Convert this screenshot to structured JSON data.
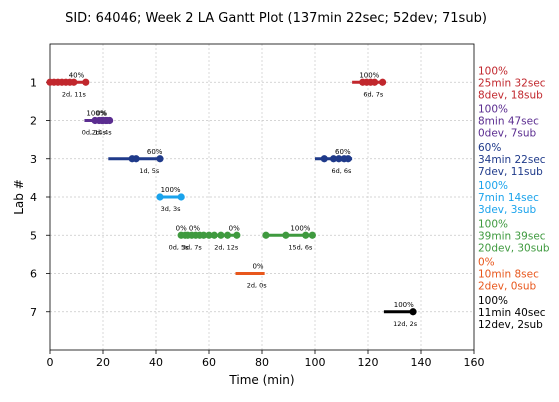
{
  "chart_data": {
    "type": "gantt",
    "title": "SID: 64046; Week 2 LA Gantt Plot (137min 22sec; 52dev; 71sub)",
    "xlabel": "Time (min)",
    "ylabel": "Lab #",
    "xlim": [
      0,
      160
    ],
    "ylim": [
      8,
      0
    ],
    "xticks": [
      0,
      20,
      40,
      60,
      80,
      100,
      120,
      140,
      160
    ],
    "xtick_labels": [
      "0",
      "20",
      "40",
      "60",
      "80",
      "100",
      "120",
      "140",
      "160"
    ],
    "yticks": [
      1,
      2,
      3,
      4,
      5,
      6,
      7
    ],
    "ytick_labels": [
      "1",
      "2",
      "3",
      "4",
      "5",
      "6",
      "7"
    ],
    "grid": "dashed",
    "segments": [
      {
        "lab": 1,
        "start": 0,
        "end": 13.5,
        "color": "#c1272d",
        "points": [
          0,
          1.5,
          3,
          4.5,
          6,
          7.5,
          9,
          13.5
        ],
        "pct_label": "40%",
        "dur_label": "2d, 11s"
      },
      {
        "lab": 1,
        "start": 114,
        "end": 126,
        "color": "#c1272d",
        "points": [
          118,
          119.5,
          121,
          122.5,
          125.5
        ],
        "pct_label": "100%",
        "dur_label": "6d, 7s"
      },
      {
        "lab": 2,
        "start": 13,
        "end": 23,
        "color": "#5b2d90",
        "points": [
          17,
          18.5,
          20,
          21.5,
          22.5
        ],
        "pct_label": "100%",
        "dur_label": "0d, 14s"
      },
      {
        "lab": 2,
        "start": 18,
        "end": 22,
        "color": "#5b2d90",
        "points": [
          19.5,
          21
        ],
        "pct_label": "0%",
        "dur_label": "2d, 4s"
      },
      {
        "lab": 3,
        "start": 22,
        "end": 41.5,
        "color": "#1f3a8a",
        "points": [
          31,
          32.5,
          41.5
        ],
        "pct_label": "60%",
        "dur_label": "1d, 5s"
      },
      {
        "lab": 3,
        "start": 100,
        "end": 114,
        "color": "#1f3a8a",
        "points": [
          103.5,
          107,
          109,
          111,
          112.5
        ],
        "pct_label": "60%",
        "dur_label": "6d, 6s"
      },
      {
        "lab": 4,
        "start": 41,
        "end": 49.5,
        "color": "#1aa3ec",
        "points": [
          41.5,
          49.5
        ],
        "pct_label": "100%",
        "dur_label": "3d, 3s"
      },
      {
        "lab": 5,
        "start": 49,
        "end": 52,
        "color": "#3f9a3f",
        "points": [
          49.5,
          51
        ],
        "pct_label": "0%",
        "dur_label": "0d, 5s"
      },
      {
        "lab": 5,
        "start": 51,
        "end": 58,
        "color": "#3f9a3f",
        "points": [
          52,
          53.5,
          55,
          56.5,
          58
        ],
        "pct_label": "0%",
        "dur_label": "3d, 7s"
      },
      {
        "lab": 5,
        "start": 58,
        "end": 71,
        "color": "#3f9a3f",
        "points": [
          60,
          62,
          64.5,
          67,
          70.5
        ],
        "pct_label": "0%",
        "dur_label": "2d, 12s"
      },
      {
        "lab": 5,
        "start": 81,
        "end": 99.5,
        "color": "#3f9a3f",
        "points": [
          81.5,
          89,
          96.5,
          99
        ],
        "pct_label": "100%",
        "dur_label": "15d, 6s"
      },
      {
        "lab": 6,
        "start": 70,
        "end": 81,
        "color": "#e8571c",
        "points": [],
        "pct_label": "0%",
        "dur_label": "2d, 0s"
      },
      {
        "lab": 7,
        "start": 126,
        "end": 137.5,
        "color": "#000000",
        "points": [
          137
        ],
        "pct_label": "100%",
        "dur_label": "12d, 2s"
      }
    ],
    "pct_positions": [
      {
        "x": 10,
        "lab": 1,
        "text": "40%"
      },
      {
        "x": 120.5,
        "lab": 1,
        "text": "100%"
      },
      {
        "x": 17.5,
        "lab": 2,
        "text": "100%"
      },
      {
        "x": 19.5,
        "lab": 2,
        "text": "0%"
      },
      {
        "x": 39.5,
        "lab": 3,
        "text": "60%"
      },
      {
        "x": 110.5,
        "lab": 3,
        "text": "60%"
      },
      {
        "x": 45.5,
        "lab": 4,
        "text": "100%"
      },
      {
        "x": 49.5,
        "lab": 5,
        "text": "0%"
      },
      {
        "x": 54.5,
        "lab": 5,
        "text": "0%"
      },
      {
        "x": 69.5,
        "lab": 5,
        "text": "0%"
      },
      {
        "x": 94.5,
        "lab": 5,
        "text": "100%"
      },
      {
        "x": 78.5,
        "lab": 6,
        "text": "0%"
      },
      {
        "x": 133.5,
        "lab": 7,
        "text": "100%"
      }
    ],
    "dur_positions": [
      {
        "x": 9,
        "lab": 1,
        "text": "2d, 11s"
      },
      {
        "x": 122,
        "lab": 1,
        "text": "6d, 7s"
      },
      {
        "x": 16.5,
        "lab": 2,
        "text": "0d, 14s"
      },
      {
        "x": 19.5,
        "lab": 2,
        "text": "2d, 4s"
      },
      {
        "x": 37.5,
        "lab": 3,
        "text": "1d, 5s"
      },
      {
        "x": 110,
        "lab": 3,
        "text": "6d, 6s"
      },
      {
        "x": 45.5,
        "lab": 4,
        "text": "3d, 3s"
      },
      {
        "x": 48.5,
        "lab": 5,
        "text": "0d, 5s"
      },
      {
        "x": 53.5,
        "lab": 5,
        "text": "3d, 7s"
      },
      {
        "x": 66.5,
        "lab": 5,
        "text": "2d, 12s"
      },
      {
        "x": 94.5,
        "lab": 5,
        "text": "15d, 6s"
      },
      {
        "x": 78,
        "lab": 6,
        "text": "2d, 0s"
      },
      {
        "x": 134,
        "lab": 7,
        "text": "12d, 2s"
      }
    ],
    "side_labels": [
      {
        "lab": 1,
        "color": "#c1272d",
        "lines": [
          "100%",
          "25min 32sec",
          "8dev, 18sub"
        ]
      },
      {
        "lab": 2,
        "color": "#5b2d90",
        "lines": [
          "100%",
          "8min 47sec",
          "0dev, 7sub"
        ]
      },
      {
        "lab": 3,
        "color": "#1f3a8a",
        "lines": [
          "60%",
          "34min 22sec",
          "7dev, 11sub"
        ]
      },
      {
        "lab": 4,
        "color": "#1aa3ec",
        "lines": [
          "100%",
          "7min 14sec",
          "3dev, 3sub"
        ]
      },
      {
        "lab": 5,
        "color": "#3f9a3f",
        "lines": [
          "100%",
          "39min 39sec",
          "20dev, 30sub"
        ]
      },
      {
        "lab": 6,
        "color": "#e8571c",
        "lines": [
          "0%",
          "10min 8sec",
          "2dev, 0sub"
        ]
      },
      {
        "lab": 7,
        "color": "#000000",
        "lines": [
          "100%",
          "11min 40sec",
          "12dev, 2sub"
        ]
      }
    ]
  }
}
